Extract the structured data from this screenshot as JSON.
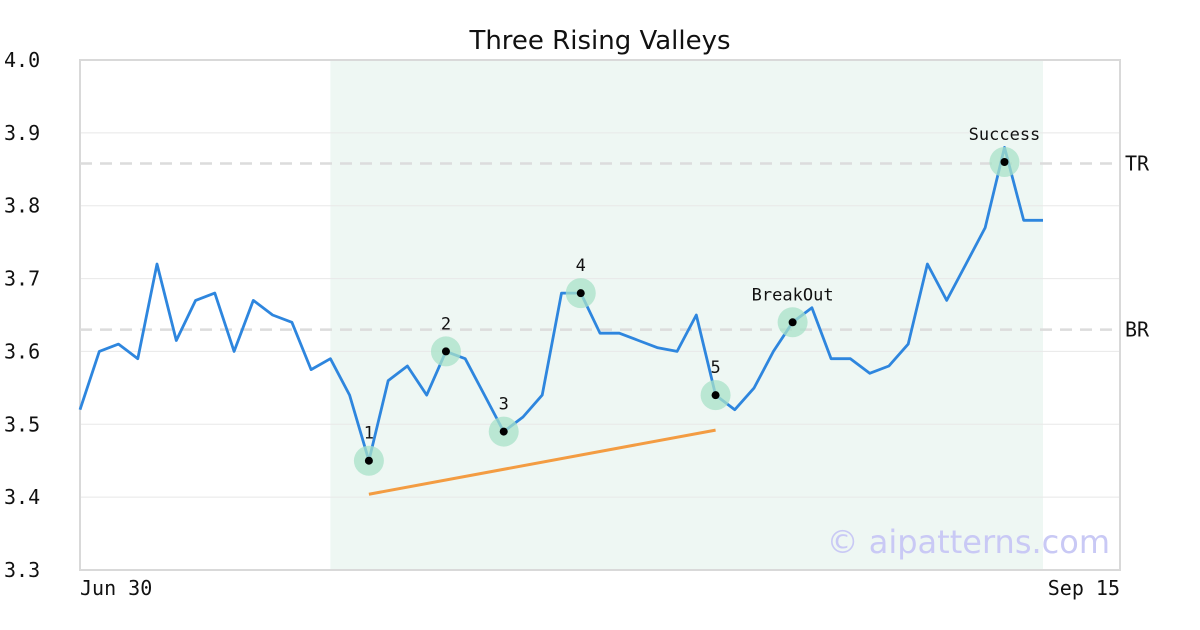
{
  "chart_data": {
    "type": "line",
    "title": "Three Rising Valleys",
    "xlabel": "",
    "ylabel": "",
    "ylim": [
      3.3,
      4.0
    ],
    "y_ticks": [
      "4.0",
      "3.9",
      "3.8",
      "3.7",
      "3.6",
      "3.5",
      "3.4",
      "3.3"
    ],
    "x_tick_labels": [
      "Jun 30",
      "Sep 15"
    ],
    "grid": "horizontal",
    "series": [
      {
        "color": "#2e86de",
        "values": [
          3.52,
          3.6,
          3.61,
          3.59,
          3.72,
          3.615,
          3.67,
          3.68,
          3.6,
          3.67,
          3.65,
          3.64,
          3.575,
          3.59,
          3.54,
          3.45,
          3.56,
          3.58,
          3.54,
          3.6,
          3.59,
          3.54,
          3.49,
          3.51,
          3.54,
          3.68,
          3.68,
          3.625,
          3.625,
          3.615,
          3.605,
          3.6,
          3.65,
          3.54,
          3.52,
          3.55,
          3.6,
          3.64,
          3.66,
          3.59,
          3.59,
          3.57,
          3.58,
          3.61,
          3.72,
          3.67,
          3.72,
          3.77,
          3.88,
          3.78,
          3.78
        ]
      }
    ],
    "highlight_region": {
      "from_index": 13,
      "to_index": 50,
      "color": "#eef7f3"
    },
    "levels": [
      {
        "label": "TR",
        "value": 3.858
      },
      {
        "label": "BR",
        "value": 3.63
      }
    ],
    "trendline": {
      "from": {
        "index": 15,
        "value": 3.404
      },
      "to": {
        "index": 33,
        "value": 3.492
      },
      "color": "#f39c42"
    },
    "markers": [
      {
        "label": "1",
        "index": 15,
        "value": 3.45,
        "label_pos": "above"
      },
      {
        "label": "2",
        "index": 19,
        "value": 3.6,
        "label_pos": "above"
      },
      {
        "label": "3",
        "index": 22,
        "value": 3.49,
        "label_pos": "above"
      },
      {
        "label": "4",
        "index": 26,
        "value": 3.68,
        "label_pos": "above"
      },
      {
        "label": "5",
        "index": 33,
        "value": 3.54,
        "label_pos": "above"
      },
      {
        "label": "BreakOut",
        "index": 37,
        "value": 3.64,
        "label_pos": "above"
      },
      {
        "label": "Success",
        "index": 48,
        "value": 3.86,
        "label_pos": "above"
      }
    ],
    "watermark": "© aipatterns.com"
  }
}
